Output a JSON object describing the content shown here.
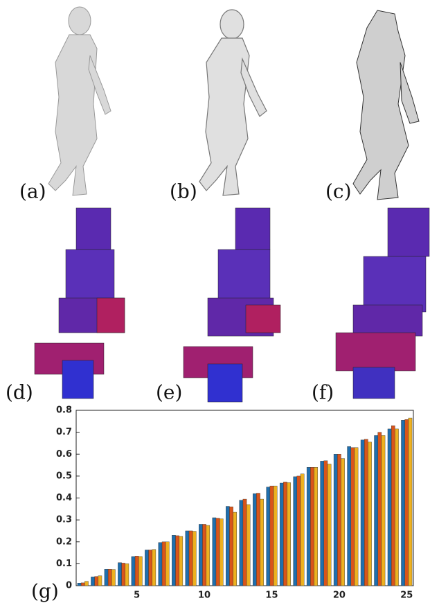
{
  "panels": [
    "(a)",
    "(b)",
    "(c)",
    "(d)",
    "(e)",
    "(f)",
    "(g)"
  ],
  "chart_data": {
    "type": "bar",
    "x": [
      1,
      2,
      3,
      4,
      5,
      6,
      7,
      8,
      9,
      10,
      11,
      12,
      13,
      14,
      15,
      16,
      17,
      18,
      19,
      20,
      21,
      22,
      23,
      24,
      25
    ],
    "xlim": [
      0.5,
      25.5
    ],
    "xticks": [
      5,
      10,
      15,
      20,
      25
    ],
    "ylim": [
      0,
      0.8
    ],
    "yticks": [
      0,
      0.1,
      0.2,
      0.3,
      0.4,
      0.5,
      0.6,
      0.7,
      0.8
    ],
    "series": [
      {
        "color": "#1f6fae",
        "values": [
          0.012,
          0.04,
          0.075,
          0.105,
          0.133,
          0.163,
          0.197,
          0.23,
          0.25,
          0.28,
          0.31,
          0.362,
          0.39,
          0.42,
          0.45,
          0.468,
          0.497,
          0.54,
          0.568,
          0.6,
          0.635,
          0.665,
          0.685,
          0.715,
          0.755
        ]
      },
      {
        "color": "#d9541a",
        "values": [
          0.013,
          0.042,
          0.075,
          0.103,
          0.135,
          0.163,
          0.2,
          0.228,
          0.25,
          0.28,
          0.308,
          0.36,
          0.395,
          0.422,
          0.455,
          0.473,
          0.5,
          0.54,
          0.57,
          0.6,
          0.63,
          0.668,
          0.7,
          0.73,
          0.758
        ]
      },
      {
        "color": "#edb120",
        "values": [
          0.02,
          0.045,
          0.074,
          0.1,
          0.133,
          0.165,
          0.2,
          0.225,
          0.248,
          0.275,
          0.305,
          0.335,
          0.37,
          0.395,
          0.455,
          0.47,
          0.51,
          0.54,
          0.555,
          0.58,
          0.63,
          0.655,
          0.685,
          0.715,
          0.765
        ]
      }
    ]
  }
}
